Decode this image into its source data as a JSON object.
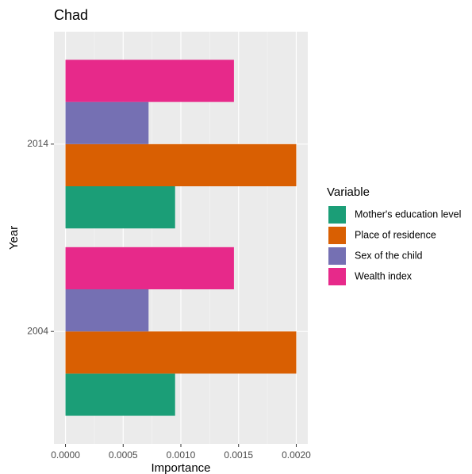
{
  "chart_data": {
    "type": "bar",
    "orientation": "horizontal",
    "title": "Chad",
    "x_label": "Importance",
    "y_label": "Year",
    "categories": [
      "2004",
      "2014"
    ],
    "series": [
      {
        "name": "Mother's education level",
        "color": "#1b9e77",
        "values": [
          0.00095,
          0.00095
        ]
      },
      {
        "name": "Place of residence",
        "color": "#d95f02",
        "values": [
          0.002,
          0.002
        ]
      },
      {
        "name": "Sex of the child",
        "color": "#7570b3",
        "values": [
          0.00072,
          0.00072
        ]
      },
      {
        "name": "Wealth index",
        "color": "#e7298a",
        "values": [
          0.00146,
          0.00146
        ]
      }
    ],
    "legend_title": "Variable",
    "xlim": [
      -0.0001,
      0.0021
    ],
    "xticks": [
      {
        "value": 0,
        "label": "0.0000"
      },
      {
        "value": 0.0005,
        "label": "0.0005"
      },
      {
        "value": 0.001,
        "label": "0.0010"
      },
      {
        "value": 0.0015,
        "label": "0.0015"
      },
      {
        "value": 0.002,
        "label": "0.0020"
      }
    ],
    "grid": true,
    "legend_position": "right"
  }
}
